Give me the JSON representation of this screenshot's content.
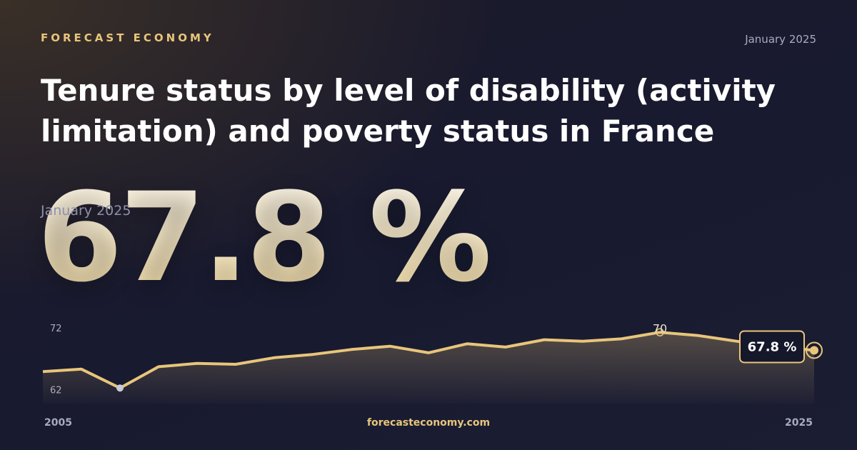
{
  "brand": "FORECAST ECONOMY",
  "date": "January 2025",
  "footer": "forecasteconomy.com",
  "chart_data": {
    "type": "line",
    "title": "Tenure status by level of disability (activity limitation) and poverty status in France",
    "x": [
      2005,
      2006,
      2007,
      2008,
      2009,
      2010,
      2011,
      2012,
      2013,
      2014,
      2015,
      2016,
      2017,
      2018,
      2019,
      2020,
      2021,
      2022,
      2023,
      2024,
      2025
    ],
    "values": [
      65.2,
      65.5,
      63.2,
      65.8,
      66.2,
      66.1,
      66.9,
      67.3,
      67.9,
      68.3,
      67.5,
      68.6,
      68.2,
      69.1,
      68.9,
      69.2,
      70,
      69.6,
      68.9,
      68.3,
      67.8
    ],
    "value_labels": [
      null,
      null,
      null,
      null,
      null,
      null,
      null,
      null,
      null,
      null,
      null,
      null,
      null,
      null,
      null,
      null,
      "70",
      null,
      null,
      null,
      "67.8 %"
    ],
    "color": "#e8c57a",
    "xlim": [
      2005,
      2025
    ],
    "xticks": [
      2005,
      2025
    ],
    "ylim": [
      61.3,
      72.2
    ],
    "yticks": [
      62,
      72
    ]
  }
}
